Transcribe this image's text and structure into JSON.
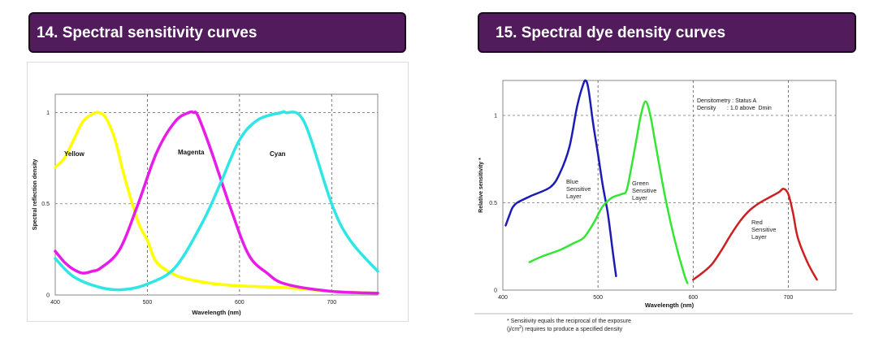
{
  "left_panel": {
    "title": "14. Spectral sensitivity curves"
  },
  "right_panel": {
    "title": "15. Spectral dye density curves",
    "footnote_line1": "* Sensitivity equals the reciprocal of the exposure",
    "footnote_line2_pre": "(j/cm",
    "footnote_line2_sup": "2",
    "footnote_line2_post": ") requires to produce a specified density"
  },
  "chart_data": [
    {
      "type": "line",
      "xlabel": "Wavelength (nm)",
      "ylabel": "Spectral reflection density",
      "xlim": [
        400,
        750
      ],
      "ylim": [
        0,
        1.1
      ],
      "xticks": [
        400,
        500,
        600,
        700
      ],
      "yticks": [
        0,
        0.5,
        1
      ],
      "ytick_labels": [
        "0",
        "0.5",
        "1"
      ],
      "grid": "dashed at x ticks and y ticks",
      "series": [
        {
          "name": "Yellow",
          "color": "#ffff00",
          "x": [
            400,
            410,
            420,
            430,
            440,
            447,
            455,
            465,
            475,
            490,
            500,
            510,
            530,
            550,
            575,
            600,
            650,
            700,
            750
          ],
          "y": [
            0.7,
            0.75,
            0.85,
            0.95,
            0.99,
            1.0,
            0.97,
            0.85,
            0.65,
            0.4,
            0.3,
            0.18,
            0.11,
            0.08,
            0.06,
            0.05,
            0.04,
            0.02,
            0.01
          ]
        },
        {
          "name": "Magenta",
          "color": "#e81ce8",
          "x": [
            400,
            410,
            420,
            430,
            440,
            450,
            470,
            490,
            510,
            530,
            545,
            550,
            555,
            570,
            590,
            610,
            630,
            650,
            700,
            750
          ],
          "y": [
            0.24,
            0.18,
            0.14,
            0.12,
            0.13,
            0.15,
            0.25,
            0.5,
            0.78,
            0.95,
            1.0,
            1.0,
            0.98,
            0.78,
            0.48,
            0.22,
            0.12,
            0.06,
            0.02,
            0.01
          ]
        },
        {
          "name": "Cyan",
          "color": "#2ee6e6",
          "x": [
            400,
            420,
            450,
            475,
            500,
            530,
            560,
            580,
            600,
            620,
            645,
            650,
            670,
            700,
            720,
            750
          ],
          "y": [
            0.2,
            0.1,
            0.04,
            0.03,
            0.06,
            0.15,
            0.4,
            0.62,
            0.85,
            0.96,
            1.0,
            1.0,
            0.95,
            0.5,
            0.3,
            0.13
          ]
        }
      ]
    },
    {
      "type": "line",
      "xlabel": "Wavelength (nm)",
      "ylabel": "Relative sensitivity *",
      "xlim": [
        400,
        750
      ],
      "ylim": [
        0,
        1.2
      ],
      "xticks": [
        400,
        500,
        600,
        700
      ],
      "yticks": [
        0,
        0.5,
        1
      ],
      "ytick_labels": [
        "0",
        "0.5",
        "1"
      ],
      "grid": "dashed at x ticks and y ticks",
      "annotation_lines": [
        "Densitometry : Status A",
        "Density       : 1.0 above  Dmin"
      ],
      "series": [
        {
          "name": "Blue Sensitive Layer",
          "color": "#1c1cb4",
          "x": [
            403,
            407,
            410,
            415,
            430,
            450,
            460,
            470,
            478,
            484,
            487,
            490,
            495,
            500,
            505,
            510,
            513,
            516,
            519
          ],
          "y": [
            0.37,
            0.43,
            0.47,
            0.5,
            0.54,
            0.59,
            0.67,
            0.82,
            1.05,
            1.17,
            1.2,
            1.15,
            0.95,
            0.78,
            0.6,
            0.45,
            0.33,
            0.2,
            0.08
          ]
        },
        {
          "name": "Green Sensitive Layer",
          "color": "#33e633",
          "x": [
            428,
            440,
            460,
            475,
            485,
            495,
            505,
            515,
            525,
            530,
            535,
            540,
            545,
            550,
            555,
            560,
            570,
            580,
            590,
            594
          ],
          "y": [
            0.16,
            0.19,
            0.23,
            0.27,
            0.3,
            0.38,
            0.48,
            0.53,
            0.55,
            0.57,
            0.7,
            0.85,
            1.0,
            1.08,
            1.0,
            0.85,
            0.55,
            0.3,
            0.1,
            0.04
          ]
        },
        {
          "name": "Red Sensitive Layer",
          "color": "#cc1f1f",
          "x": [
            600,
            610,
            620,
            630,
            640,
            650,
            660,
            670,
            680,
            690,
            695,
            700,
            705,
            710,
            720,
            730
          ],
          "y": [
            0.06,
            0.1,
            0.15,
            0.23,
            0.32,
            0.4,
            0.46,
            0.5,
            0.53,
            0.56,
            0.58,
            0.55,
            0.44,
            0.3,
            0.16,
            0.06
          ]
        }
      ]
    }
  ]
}
